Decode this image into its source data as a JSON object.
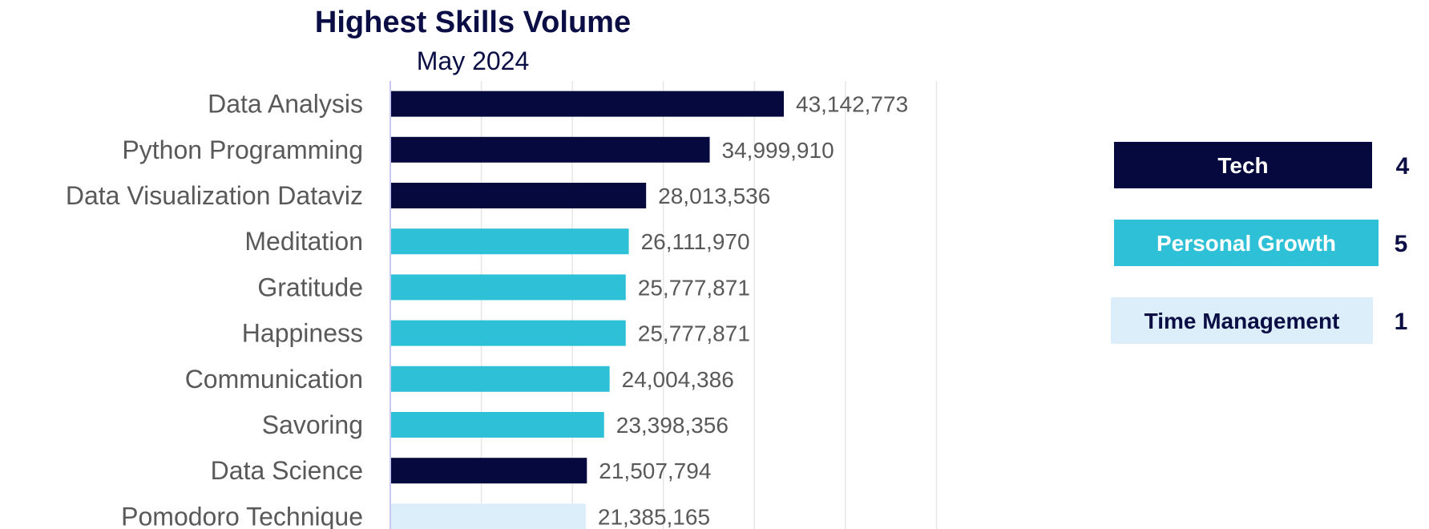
{
  "chart_data": {
    "type": "bar",
    "orientation": "horizontal",
    "title": "Highest Skills Volume",
    "subtitle": "May 2024",
    "categories": [
      "Data Analysis",
      "Python Programming",
      "Data Visualization Dataviz",
      "Meditation",
      "Gratitude",
      "Happiness",
      "Communication",
      "Savoring",
      "Data Science",
      "Pomodoro Technique"
    ],
    "values": [
      43142773,
      34999910,
      28013536,
      26111970,
      25777871,
      25777871,
      24004386,
      23398356,
      21507794,
      21385165
    ],
    "value_labels": [
      "43,142,773",
      "34,999,910",
      "28,013,536",
      "26,111,970",
      "25,777,871",
      "25,777,871",
      "24,004,386",
      "23,398,356",
      "21,507,794",
      "21,385,165"
    ],
    "groups": [
      "Tech",
      "Tech",
      "Tech",
      "Personal Growth",
      "Personal Growth",
      "Personal Growth",
      "Personal Growth",
      "Personal Growth",
      "Tech",
      "Time Management"
    ],
    "xlim": [
      0,
      60000000
    ],
    "grid": true,
    "legend": {
      "placement": "right",
      "items": [
        {
          "name": "Tech",
          "count": "4",
          "color": "#05093d",
          "text_color": "#ffffff"
        },
        {
          "name": "Personal Growth",
          "count": "5",
          "color": "#2ec0d6",
          "text_color": "#ffffff"
        },
        {
          "name": "Time Management",
          "count": "1",
          "color": "#dceefa",
          "text_color": "#0b0e45"
        }
      ]
    }
  }
}
